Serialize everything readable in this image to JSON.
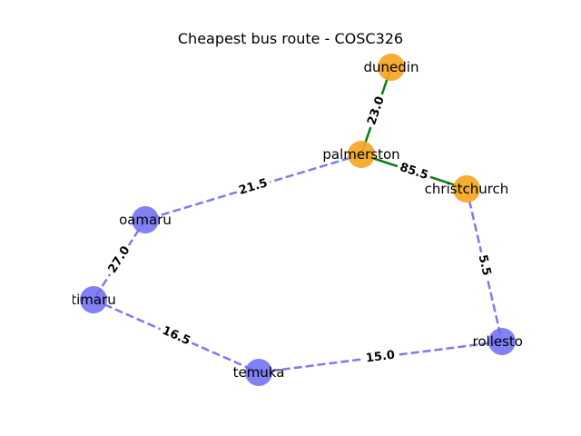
{
  "title": "Cheapest bus route - COSC326",
  "colors": {
    "route_node": "#f5a623",
    "other_node": "#6b6bf2",
    "route_edge": "#0a8010",
    "other_edge": "#7b7bef"
  },
  "nodes": [
    {
      "id": "dunedin",
      "label": "dunedin",
      "on_route": true
    },
    {
      "id": "palmerston",
      "label": "palmerston",
      "on_route": true
    },
    {
      "id": "christchurch",
      "label": "christchurch",
      "on_route": true
    },
    {
      "id": "oamaru",
      "label": "oamaru",
      "on_route": false
    },
    {
      "id": "timaru",
      "label": "timaru",
      "on_route": false
    },
    {
      "id": "temuka",
      "label": "temuka",
      "on_route": false
    },
    {
      "id": "rolleston",
      "label": "rolleston",
      "on_route": false
    }
  ],
  "edges": [
    {
      "from": "dunedin",
      "to": "palmerston",
      "weight": "23.0",
      "on_route": true
    },
    {
      "from": "palmerston",
      "to": "christchurch",
      "weight": "85.5",
      "on_route": true
    },
    {
      "from": "palmerston",
      "to": "oamaru",
      "weight": "21.5",
      "on_route": false
    },
    {
      "from": "oamaru",
      "to": "timaru",
      "weight": "27.0",
      "on_route": false
    },
    {
      "from": "timaru",
      "to": "temuka",
      "weight": "16.5",
      "on_route": false
    },
    {
      "from": "temuka",
      "to": "rolleston",
      "weight": "15.0",
      "on_route": false
    },
    {
      "from": "christchurch",
      "to": "rolleston",
      "weight": "5.5",
      "on_route": false
    }
  ]
}
